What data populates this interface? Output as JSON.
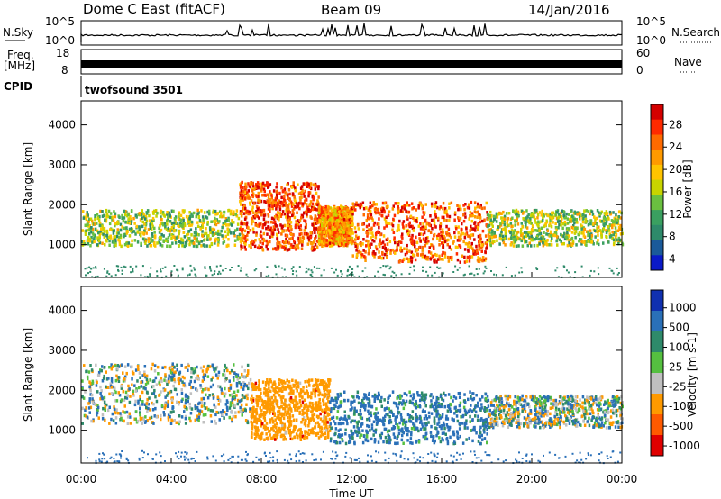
{
  "header": {
    "radar_title": "Dome C East (fitACF)",
    "beam": "Beam 09",
    "date": "14/Jan/2016"
  },
  "top_panels": {
    "nsky_label": "N.Sky",
    "nsky_ticks": [
      "10^5",
      "10^0"
    ],
    "nsearch_label": "N.Search",
    "nsearch_ticks": [
      "10^5",
      "10^0"
    ],
    "freq_label": "Freq.",
    "freq_unit": "[MHz]",
    "freq_ticks": [
      "18",
      "8"
    ],
    "nave_label": "Nave",
    "nave_ticks": [
      "60",
      "0"
    ],
    "cpid_label": "CPID",
    "cpid_value": "twofsound 3501"
  },
  "chart_data": [
    {
      "type": "heatmap",
      "name": "power",
      "ylabel": "Slant Range [km]",
      "x_range_hours": [
        0,
        24
      ],
      "ylim_km": [
        180,
        4600
      ],
      "yticks": [
        "4000",
        "3000",
        "2000",
        "1000"
      ],
      "colorbar": {
        "label": "Power [dB]",
        "ticks": [
          "28",
          "24",
          "20",
          "16",
          "12",
          "8",
          "4"
        ],
        "colors": [
          "#d40000",
          "#ff2a00",
          "#ff6a00",
          "#ff9a00",
          "#ffc400",
          "#c8d400",
          "#6ac040",
          "#3aa060",
          "#2e8a6a",
          "#1a5a9a",
          "#0a1ac8"
        ]
      },
      "scatter_bands_km": [
        {
          "t": [
            0,
            7
          ],
          "r": [
            1000,
            1900
          ],
          "level": 14
        },
        {
          "t": [
            7,
            10.5
          ],
          "r": [
            900,
            2600
          ],
          "level": 26
        },
        {
          "t": [
            10.5,
            12
          ],
          "r": [
            1000,
            2000
          ],
          "level": 22
        },
        {
          "t": [
            12,
            18
          ],
          "r": [
            600,
            2100
          ],
          "level": 25
        },
        {
          "t": [
            18,
            24
          ],
          "r": [
            1000,
            1900
          ],
          "level": 15
        }
      ]
    },
    {
      "type": "heatmap",
      "name": "velocity",
      "ylabel": "Slant Range [km]",
      "xlabel": "Time UT",
      "x_range_hours": [
        0,
        24
      ],
      "ylim_km": [
        180,
        4600
      ],
      "yticks": [
        "4000",
        "3000",
        "2000",
        "1000"
      ],
      "xticks": [
        "00:00",
        "04:00",
        "08:00",
        "12:00",
        "16:00",
        "20:00",
        "00:00"
      ],
      "colorbar": {
        "label": "Velocity [m s-1]",
        "ticks": [
          "1000",
          "500",
          "100",
          "25",
          "-25",
          "-100",
          "-500",
          "-1000"
        ],
        "colors": [
          "#1030b0",
          "#2a70b8",
          "#2e8a6a",
          "#55c040",
          "#c0c0c0",
          "#ff9a00",
          "#ff5a00",
          "#e00000"
        ]
      },
      "scatter_bands_km": [
        {
          "t": [
            0,
            7.5
          ],
          "r": [
            1200,
            2700
          ],
          "level": 0
        },
        {
          "t": [
            7.5,
            11
          ],
          "r": [
            800,
            2300
          ],
          "level": -300
        },
        {
          "t": [
            11,
            18
          ],
          "r": [
            700,
            2000
          ],
          "level": 200
        },
        {
          "t": [
            18,
            24
          ],
          "r": [
            1100,
            1900
          ],
          "level": 0
        }
      ]
    }
  ]
}
